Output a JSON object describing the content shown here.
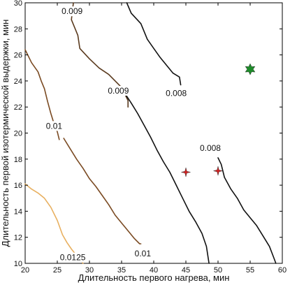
{
  "chart_data": {
    "type": "contour",
    "xlabel": "Длительность первого нагрева, мин",
    "ylabel": "Длительность первой изотермической выдержки, мин",
    "xlim": [
      20,
      60
    ],
    "ylim": [
      10,
      30
    ],
    "xticks": [
      "20",
      "25",
      "30",
      "35",
      "40",
      "45",
      "50",
      "55",
      "60"
    ],
    "yticks": [
      "10",
      "12",
      "14",
      "16",
      "18",
      "20",
      "22",
      "24",
      "26",
      "28",
      "30"
    ],
    "grid": false,
    "contours": [
      {
        "level": "0.009",
        "color": "#5a3a1e",
        "points": [
          [
            27.5,
            30
          ],
          [
            27.2,
            28.7
          ],
          [
            28.2,
            27.5
          ],
          [
            28.5,
            26.5
          ],
          [
            30,
            25.7
          ],
          [
            31.5,
            25
          ],
          [
            33,
            24.5
          ],
          [
            35,
            23.5
          ],
          [
            36,
            22.5
          ],
          [
            36,
            22
          ]
        ],
        "labels": [
          {
            "text": "0.009",
            "x": 27.3,
            "y": 29.3
          },
          {
            "text": "0.009",
            "x": 34.5,
            "y": 23.2
          }
        ]
      },
      {
        "level": "0.008",
        "color": "#111111",
        "points": [
          [
            35.8,
            30
          ],
          [
            36.5,
            29.2
          ],
          [
            38,
            28.4
          ],
          [
            39,
            27.2
          ],
          [
            40,
            26.5
          ],
          [
            41,
            25.8
          ],
          [
            42,
            25.2
          ],
          [
            43,
            24.6
          ],
          [
            44,
            24.3
          ],
          [
            44.2,
            23.7
          ]
        ],
        "labels": [
          {
            "text": "0.008",
            "x": 43.5,
            "y": 23.0
          }
        ]
      },
      {
        "level": "0.008",
        "color": "#111111",
        "points": [
          [
            50,
            18.1
          ],
          [
            50.5,
            17.6
          ],
          [
            51,
            16.6
          ],
          [
            52,
            15.7
          ],
          [
            53,
            15
          ],
          [
            54,
            14.1
          ],
          [
            55,
            13.5
          ],
          [
            56,
            12.9
          ],
          [
            57,
            12.1
          ],
          [
            58,
            11.3
          ],
          [
            58.7,
            10.4
          ],
          [
            59,
            10
          ]
        ],
        "labels": [
          {
            "text": "0.008",
            "x": 48.8,
            "y": 18.8
          }
        ]
      },
      {
        "level": "0.008",
        "color": "#111111",
        "points": [
          [
            35.3,
            23.2
          ],
          [
            36.5,
            22.3
          ],
          [
            37.5,
            21.5
          ],
          [
            38.5,
            20.6
          ],
          [
            39.5,
            19.7
          ],
          [
            40.5,
            18.7
          ],
          [
            41.5,
            17.8
          ],
          [
            42.5,
            17
          ],
          [
            43.5,
            16
          ],
          [
            44.5,
            15
          ],
          [
            45.5,
            14
          ],
          [
            46.5,
            13.2
          ],
          [
            47.5,
            12.3
          ],
          [
            48.2,
            11.3
          ],
          [
            48.6,
            10
          ]
        ],
        "labels": []
      },
      {
        "level": "0.01",
        "color": "#7a4a22",
        "points": [
          [
            20,
            26.4
          ],
          [
            21,
            25.4
          ],
          [
            22,
            24.7
          ],
          [
            22.5,
            24
          ],
          [
            23,
            23.4
          ],
          [
            23.5,
            22.4
          ],
          [
            24,
            21.5
          ],
          [
            24.5,
            20.7
          ],
          [
            25,
            20.1
          ],
          [
            25.3,
            19.5
          ]
        ],
        "labels": [
          {
            "text": "0.01",
            "x": 24.5,
            "y": 20.5
          }
        ]
      },
      {
        "level": "0.01",
        "color": "#7a4a22",
        "points": [
          [
            26,
            19.6
          ],
          [
            27,
            18.8
          ],
          [
            28,
            18
          ],
          [
            29,
            17.3
          ],
          [
            30,
            16.5
          ],
          [
            31,
            15.9
          ],
          [
            32,
            15.2
          ],
          [
            33,
            14.5
          ],
          [
            34,
            13.7
          ],
          [
            35,
            13.1
          ],
          [
            36,
            12.5
          ],
          [
            37,
            11.9
          ],
          [
            37.8,
            11.5
          ],
          [
            38,
            11.5
          ]
        ],
        "labels": [
          {
            "text": "0.01",
            "x": 38.3,
            "y": 10.7
          }
        ]
      },
      {
        "level": "0.0125",
        "color": "#e8b060",
        "points": [
          [
            20,
            16.1
          ],
          [
            21,
            15.7
          ],
          [
            22,
            15.4
          ],
          [
            23,
            15
          ],
          [
            24,
            14.3
          ],
          [
            25,
            13.3
          ],
          [
            25.8,
            12.2
          ],
          [
            26.5,
            11.6
          ],
          [
            27.2,
            11.1
          ],
          [
            28,
            10.6
          ],
          [
            28.5,
            10.3
          ],
          [
            29,
            10
          ]
        ],
        "labels": [
          {
            "text": "0.0125",
            "x": 27.4,
            "y": 10.4
          }
        ]
      }
    ],
    "markers": [
      {
        "shape": "star6",
        "color": "#1e8c2a",
        "x": 55,
        "y": 24.9
      },
      {
        "shape": "star4",
        "color": "#d62020",
        "x": 45,
        "y": 17.0
      },
      {
        "shape": "star4",
        "color": "#d62020",
        "x": 50,
        "y": 17.1
      }
    ]
  }
}
